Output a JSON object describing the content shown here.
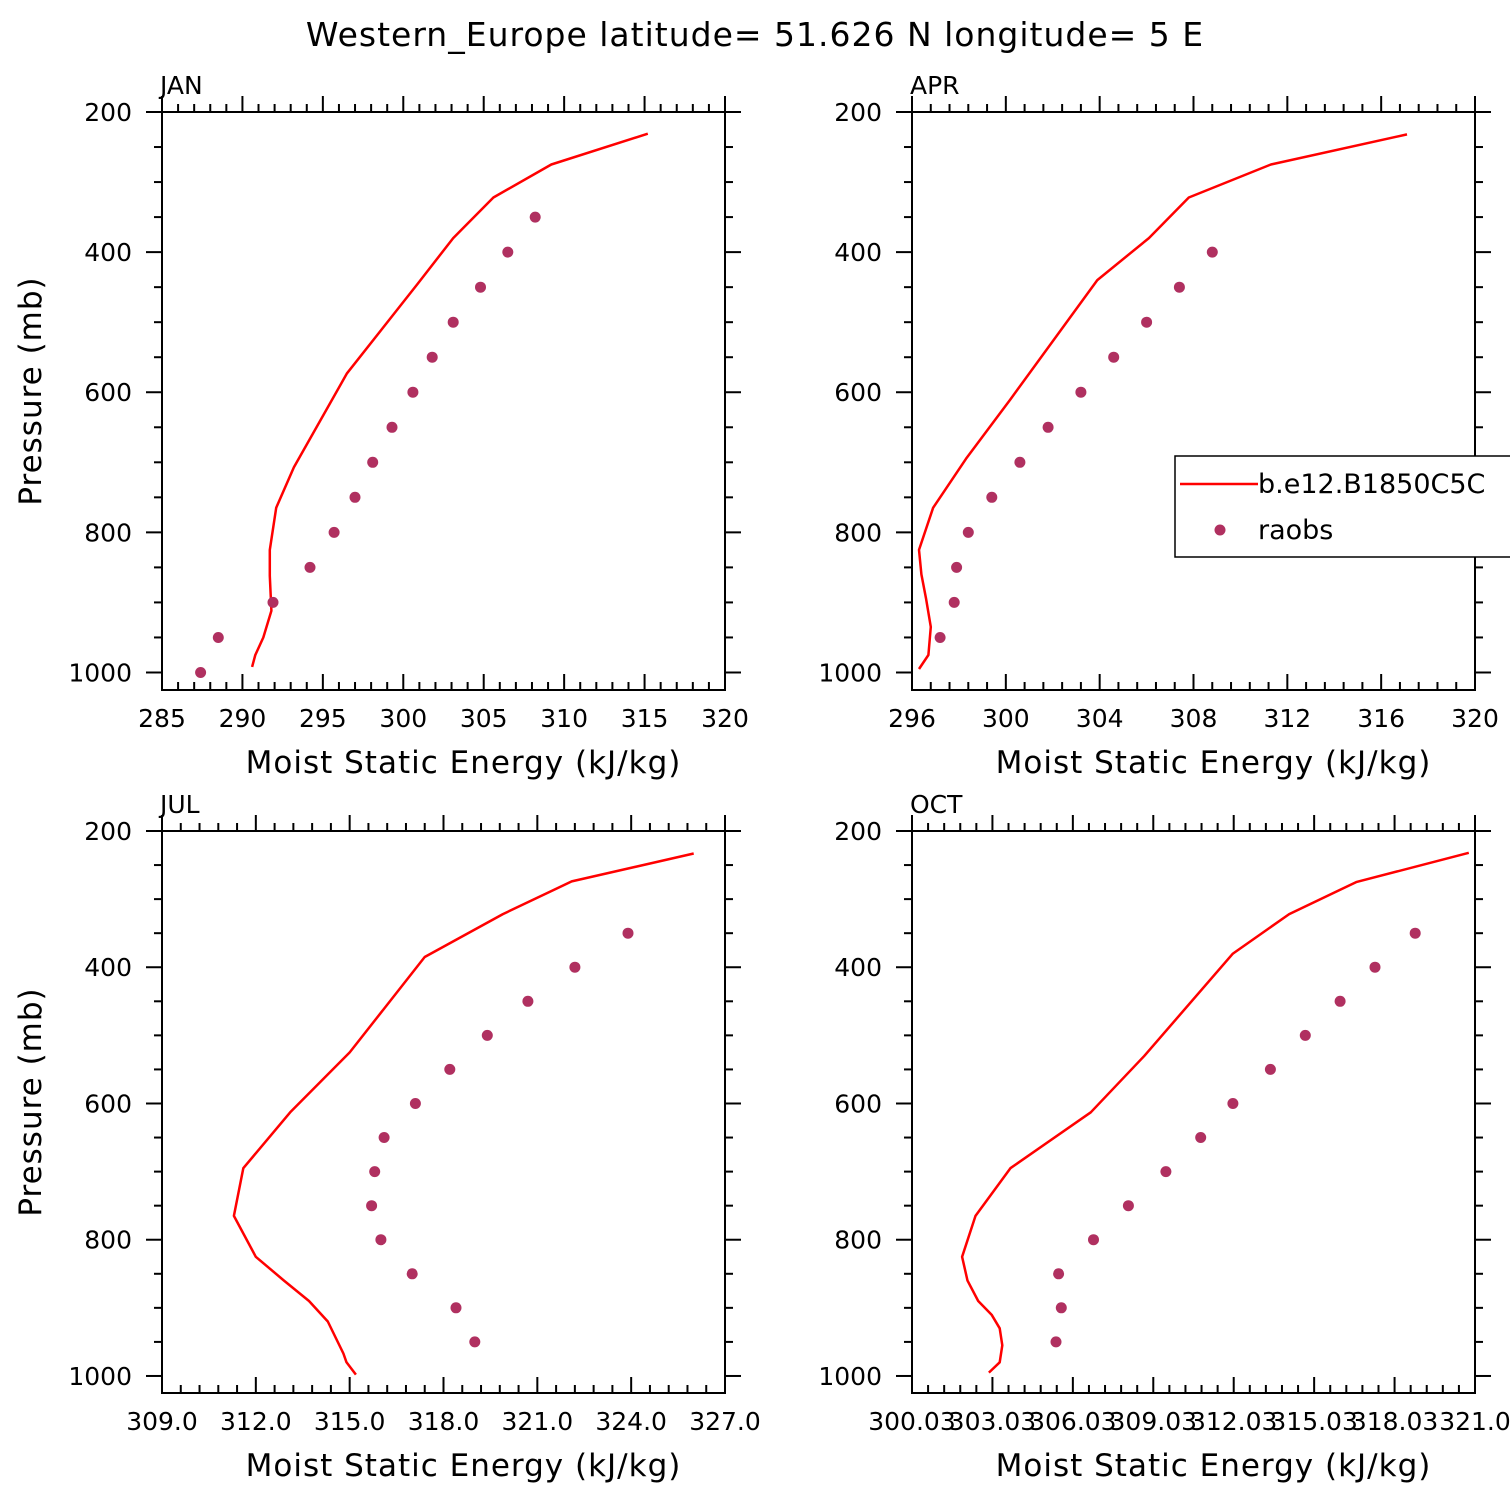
{
  "title": "Western_Europe  latitude= 51.626 N longitude= 5 E",
  "colors": {
    "model": "#ff0000",
    "obs": "#b03060",
    "axes": "#000000"
  },
  "legend": {
    "placement": "right-middle of APR panel (clipped by page edge)",
    "items": [
      {
        "label": "b.e12.B1850C5C",
        "marker": "line",
        "color": "#ff0000"
      },
      {
        "label": "raobs",
        "marker": "dot",
        "color": "#b03060"
      }
    ]
  },
  "chart_data": [
    {
      "type": "line",
      "panel": "JAN",
      "xlabel": "Moist Static Energy (kJ/kg)",
      "ylabel": "Pressure (mb)",
      "xlim": [
        285,
        320
      ],
      "ylim": [
        1025,
        200
      ],
      "xticks": [
        "285",
        "290",
        "295",
        "300",
        "305",
        "310",
        "315",
        "320"
      ],
      "yticks": [
        "200",
        "400",
        "600",
        "800",
        "1000"
      ],
      "series": [
        {
          "name": "b.e12.B1850C5C",
          "kind": "line",
          "x": [
            290.6,
            290.8,
            291.3,
            291.8,
            291.7,
            291.7,
            292.1,
            293.2,
            296.5,
            300.9,
            303.1,
            305.6,
            309.2,
            315.2
          ],
          "y": [
            992,
            975,
            950,
            912,
            862,
            825,
            765,
            707,
            573,
            445,
            380,
            322,
            275,
            231
          ]
        },
        {
          "name": "raobs",
          "kind": "scatter",
          "x": [
            287.4,
            288.5,
            291.9,
            294.2,
            295.7,
            297.0,
            298.1,
            299.3,
            300.6,
            301.8,
            303.1,
            304.8,
            306.5,
            308.2
          ],
          "y": [
            1000,
            950,
            900,
            850,
            800,
            750,
            700,
            650,
            600,
            550,
            500,
            450,
            400,
            350
          ]
        }
      ]
    },
    {
      "type": "line",
      "panel": "APR",
      "xlabel": "Moist Static Energy (kJ/kg)",
      "ylabel": "",
      "xlim": [
        296,
        320
      ],
      "ylim": [
        1025,
        200
      ],
      "xticks": [
        "296",
        "300",
        "304",
        "308",
        "312",
        "316",
        "320"
      ],
      "yticks": [
        "200",
        "400",
        "600",
        "800",
        "1000"
      ],
      "series": [
        {
          "name": "b.e12.B1850C5C",
          "kind": "line",
          "x": [
            296.3,
            296.7,
            296.8,
            296.6,
            296.4,
            296.3,
            296.9,
            298.3,
            300.2,
            303.9,
            306.1,
            307.8,
            311.3,
            317.1
          ],
          "y": [
            995,
            975,
            935,
            895,
            860,
            825,
            765,
            695,
            610,
            440,
            380,
            322,
            275,
            232
          ]
        },
        {
          "name": "raobs",
          "kind": "scatter",
          "x": [
            297.2,
            297.8,
            297.9,
            298.4,
            299.4,
            300.6,
            301.8,
            303.2,
            304.6,
            306.0,
            307.4,
            308.8
          ],
          "y": [
            950,
            900,
            850,
            800,
            750,
            700,
            650,
            600,
            550,
            500,
            450,
            400
          ]
        }
      ]
    },
    {
      "type": "line",
      "panel": "JUL",
      "xlabel": "Moist Static Energy (kJ/kg)",
      "ylabel": "Pressure (mb)",
      "xlim": [
        309,
        327
      ],
      "ylim": [
        1025,
        200
      ],
      "xticks": [
        "309.0",
        "312.0",
        "315.0",
        "318.0",
        "321.0",
        "324.0",
        "327.0"
      ],
      "yticks": [
        "200",
        "400",
        "600",
        "800",
        "1000"
      ],
      "series": [
        {
          "name": "b.e12.B1850C5C",
          "kind": "line",
          "x": [
            315.2,
            314.9,
            314.8,
            314.3,
            313.7,
            312.9,
            312.0,
            311.3,
            311.6,
            313.1,
            315.0,
            317.4,
            319.9,
            322.1,
            326.0
          ],
          "y": [
            998,
            980,
            967,
            920,
            890,
            860,
            825,
            765,
            695,
            613,
            525,
            385,
            322,
            274,
            233
          ]
        },
        {
          "name": "raobs",
          "kind": "scatter",
          "x": [
            319.0,
            318.4,
            317.0,
            316.0,
            315.7,
            315.8,
            316.1,
            317.1,
            318.2,
            319.4,
            320.7,
            322.2,
            323.9
          ],
          "y": [
            950,
            900,
            850,
            800,
            750,
            700,
            650,
            600,
            550,
            500,
            450,
            400,
            350
          ]
        }
      ]
    },
    {
      "type": "line",
      "panel": "OCT",
      "xlabel": "Moist Static Energy (kJ/kg)",
      "ylabel": "",
      "xlim": [
        300.03,
        321.03
      ],
      "ylim": [
        1025,
        200
      ],
      "xticks": [
        "300.03",
        "303.03",
        "306.03",
        "309.03",
        "312.03",
        "315.03",
        "318.03",
        "321.0"
      ],
      "yticks": [
        "200",
        "400",
        "600",
        "800",
        "1000"
      ],
      "series": [
        {
          "name": "b.e12.B1850C5C",
          "kind": "line",
          "x": [
            302.9,
            303.3,
            303.4,
            303.3,
            303.0,
            302.5,
            302.1,
            301.9,
            302.4,
            303.7,
            306.7,
            308.7,
            312.0,
            314.1,
            316.6,
            320.8
          ],
          "y": [
            995,
            980,
            955,
            930,
            910,
            890,
            860,
            825,
            765,
            695,
            613,
            530,
            380,
            322,
            275,
            232
          ]
        },
        {
          "name": "raobs",
          "kind": "scatter",
          "x": [
            305.4,
            305.6,
            305.5,
            306.8,
            308.1,
            309.5,
            310.8,
            312.0,
            313.4,
            314.7,
            316.0,
            317.3,
            318.8
          ],
          "y": [
            950,
            900,
            850,
            800,
            750,
            700,
            650,
            600,
            550,
            500,
            450,
            400,
            350
          ]
        }
      ]
    }
  ]
}
